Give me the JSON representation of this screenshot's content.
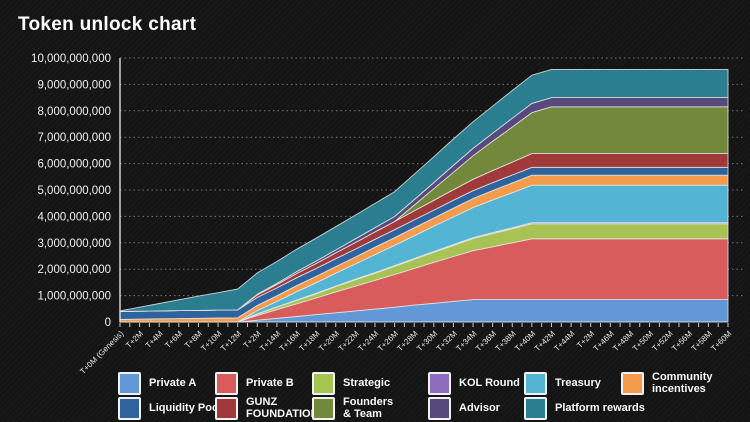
{
  "title": "Token unlock chart",
  "colors": {
    "background": "#161616",
    "grid": "#c8c8c8",
    "axis": "#e8e8e8",
    "band_stroke": "#e9e9e9"
  },
  "chart_data": {
    "type": "area",
    "stacked": true,
    "title": "Token unlock chart",
    "unit": "tokens (billions)",
    "ylim": [
      0,
      10
    ],
    "grid": "dotted-horizontal",
    "legend_position": "bottom",
    "y_tick_labels": [
      "0",
      "1,000,000,000",
      "2,000,000,000",
      "3,000,000,000",
      "4,000,000,000",
      "5,000,000,000",
      "6,000,000,000",
      "7,000,000,000",
      "8,000,000,000",
      "9,000,000,000",
      "10,000,000,000"
    ],
    "x": [
      "T+0M (Genesis)",
      "T+2M",
      "T+4M",
      "T+6M",
      "T+8M",
      "T+10M",
      "T+12M",
      "T+2M",
      "T+14M",
      "T+16M",
      "T+18M",
      "T+20M",
      "T+22M",
      "T+24M",
      "T+26M",
      "T+28M",
      "T+30M",
      "T+32M",
      "T+34M",
      "T+36M",
      "T+38M",
      "T+40M",
      "T+42M",
      "T+44M",
      "T+2M",
      "T+46M",
      "T+48M",
      "T+50M",
      "T+52M",
      "T+56M",
      "T+58M",
      "T+60M"
    ],
    "series": [
      {
        "name": "Private A",
        "color": "#6298d8",
        "values": [
          0,
          0,
          0,
          0,
          0,
          0,
          0,
          0.07,
          0.14,
          0.21,
          0.28,
          0.35,
          0.42,
          0.49,
          0.56,
          0.64,
          0.71,
          0.78,
          0.85,
          0.85,
          0.85,
          0.85,
          0.85,
          0.85,
          0.85,
          0.85,
          0.85,
          0.85,
          0.85,
          0.85,
          0.85,
          0.85
        ]
      },
      {
        "name": "Private B",
        "color": "#d95c5c",
        "values": [
          0,
          0,
          0,
          0,
          0,
          0,
          0,
          0.18,
          0.33,
          0.48,
          0.63,
          0.79,
          0.94,
          1.09,
          1.24,
          1.39,
          1.55,
          1.7,
          1.85,
          2.0,
          2.15,
          2.3,
          2.3,
          2.3,
          2.3,
          2.3,
          2.3,
          2.3,
          2.3,
          2.3,
          2.3,
          2.3
        ]
      },
      {
        "name": "Strategic",
        "color": "#a6c353",
        "values": [
          0,
          0,
          0,
          0,
          0,
          0,
          0,
          0.05,
          0.09,
          0.13,
          0.16,
          0.2,
          0.24,
          0.27,
          0.31,
          0.35,
          0.38,
          0.42,
          0.46,
          0.5,
          0.53,
          0.57,
          0.57,
          0.57,
          0.57,
          0.57,
          0.57,
          0.57,
          0.57,
          0.57,
          0.57,
          0.57
        ]
      },
      {
        "name": "KOL Round",
        "color": "#8e6cc0",
        "values": [
          0,
          0,
          0,
          0,
          0,
          0,
          0,
          0.01,
          0.012,
          0.014,
          0.016,
          0.018,
          0.021,
          0.023,
          0.025,
          0.027,
          0.029,
          0.032,
          0.034,
          0.036,
          0.038,
          0.04,
          0.04,
          0.04,
          0.04,
          0.04,
          0.04,
          0.04,
          0.04,
          0.04,
          0.04,
          0.04
        ]
      },
      {
        "name": "Treasury",
        "color": "#54b4d3",
        "values": [
          0,
          0,
          0,
          0,
          0,
          0,
          0,
          0.12,
          0.21,
          0.31,
          0.4,
          0.49,
          0.58,
          0.68,
          0.77,
          0.86,
          0.96,
          1.05,
          1.14,
          1.24,
          1.33,
          1.42,
          1.42,
          1.42,
          1.42,
          1.42,
          1.42,
          1.42,
          1.42,
          1.42,
          1.42,
          1.42
        ]
      },
      {
        "name": "Community\nincentives",
        "color": "#f49c4c",
        "values": [
          0.1,
          0.11,
          0.12,
          0.13,
          0.14,
          0.15,
          0.16,
          0.2,
          0.21,
          0.23,
          0.24,
          0.25,
          0.26,
          0.28,
          0.29,
          0.3,
          0.31,
          0.33,
          0.34,
          0.35,
          0.37,
          0.38,
          0.38,
          0.38,
          0.38,
          0.38,
          0.38,
          0.38,
          0.38,
          0.38,
          0.38,
          0.38
        ]
      },
      {
        "name": "Liquidity Pool",
        "color": "#2f639e",
        "values": [
          0.3,
          0.3,
          0.3,
          0.3,
          0.3,
          0.3,
          0.3,
          0.3,
          0.3,
          0.3,
          0.3,
          0.3,
          0.3,
          0.3,
          0.3,
          0.3,
          0.3,
          0.3,
          0.3,
          0.3,
          0.3,
          0.3,
          0.3,
          0.3,
          0.3,
          0.3,
          0.3,
          0.3,
          0.3,
          0.3,
          0.3,
          0.3
        ]
      },
      {
        "name": "GUNZ\nFOUNDATION",
        "color": "#a03a3a",
        "values": [
          0,
          0,
          0,
          0,
          0,
          0,
          0,
          0.1,
          0.13,
          0.16,
          0.19,
          0.22,
          0.25,
          0.28,
          0.31,
          0.34,
          0.37,
          0.4,
          0.43,
          0.46,
          0.49,
          0.52,
          0.52,
          0.52,
          0.52,
          0.52,
          0.52,
          0.52,
          0.52,
          0.52,
          0.52,
          0.52
        ]
      },
      {
        "name": "Founders\n& Team",
        "color": "#72883a",
        "values": [
          0,
          0,
          0,
          0,
          0,
          0,
          0,
          0,
          0,
          0,
          0,
          0,
          0,
          0,
          0,
          0.22,
          0.44,
          0.66,
          0.89,
          1.11,
          1.33,
          1.55,
          1.77,
          1.77,
          1.77,
          1.77,
          1.77,
          1.77,
          1.77,
          1.77,
          1.77,
          1.77
        ]
      },
      {
        "name": "Advisor",
        "color": "#57497c",
        "values": [
          0,
          0,
          0,
          0,
          0,
          0,
          0,
          0.02,
          0.04,
          0.07,
          0.09,
          0.11,
          0.14,
          0.16,
          0.19,
          0.21,
          0.23,
          0.26,
          0.28,
          0.3,
          0.33,
          0.35,
          0.35,
          0.35,
          0.35,
          0.35,
          0.35,
          0.35,
          0.35,
          0.35,
          0.35,
          0.35
        ]
      },
      {
        "name": "Platform rewards",
        "color": "#2b7d90",
        "values": [
          0.02,
          0.15,
          0.28,
          0.41,
          0.54,
          0.66,
          0.79,
          0.81,
          0.83,
          0.85,
          0.87,
          0.88,
          0.9,
          0.92,
          0.94,
          0.96,
          0.98,
          1.0,
          1.01,
          1.03,
          1.05,
          1.07,
          1.07,
          1.07,
          1.07,
          1.07,
          1.07,
          1.07,
          1.07,
          1.07,
          1.07,
          1.07
        ]
      }
    ]
  },
  "legend": {
    "row1": [
      "Private A",
      "Private B",
      "Strategic",
      "KOL Round",
      "Treasury",
      "Community\nincentives"
    ],
    "row2": [
      "Liquidity Pool",
      "GUNZ\nFOUNDATION",
      "Founders\n& Team",
      "Advisor",
      "Platform rewards"
    ]
  }
}
